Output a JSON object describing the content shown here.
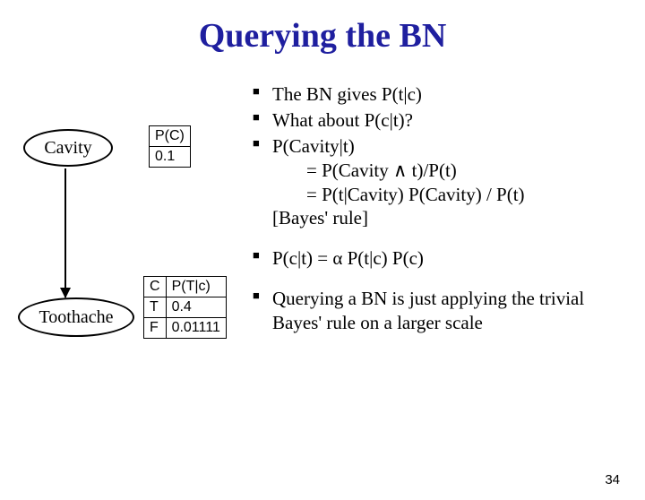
{
  "title": "Querying the BN",
  "slide_number": "34",
  "colors": {
    "title": "#1f1f9f",
    "text": "#000000",
    "background": "#ffffff",
    "border": "#000000"
  },
  "diagram": {
    "nodes": {
      "cavity_label": "Cavity",
      "toothache_label": "Toothache"
    },
    "table_pc": {
      "header": "P(C)",
      "value": "0.1"
    },
    "table_ptc": {
      "header_c": "C",
      "header_p": "P(T|c)",
      "row1_c": "T",
      "row1_p": "0.4",
      "row2_c": "F",
      "row2_p": "0.01111"
    }
  },
  "bullets": {
    "b1": "The BN gives P(t|c)",
    "b2": "What about P(c|t)?",
    "b3": "P(Cavity|t)",
    "b3a": "= P(Cavity ∧ t)/P(t)",
    "b3b": "= P(t|Cavity) P(Cavity) / P(t)",
    "b3c": "[Bayes' rule]",
    "b4": "P(c|t) = α P(t|c) P(c)",
    "b5": "Querying a BN is just applying the trivial Bayes' rule on a larger scale"
  }
}
